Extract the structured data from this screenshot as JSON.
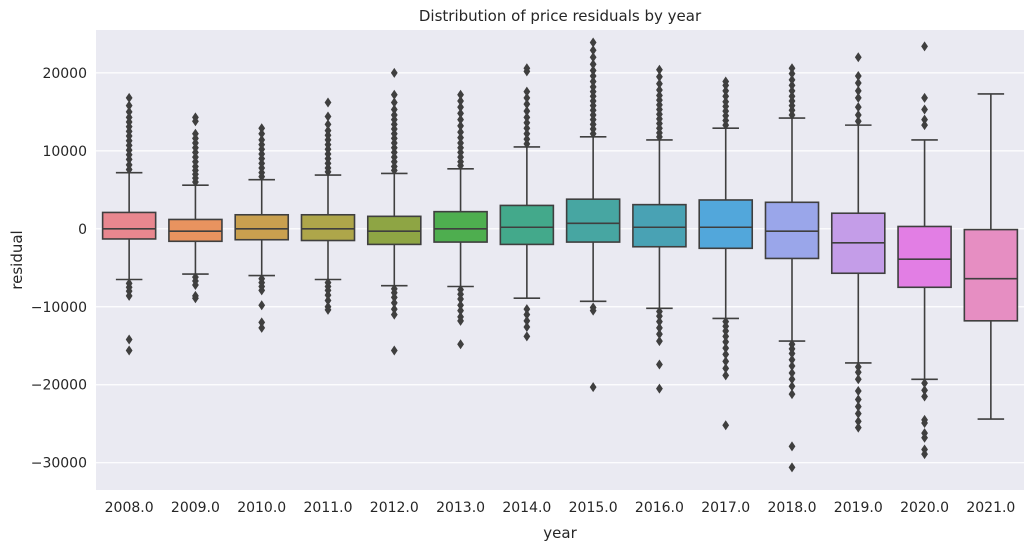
{
  "chart_data": {
    "type": "box",
    "title": "Distribution of price residuals by year",
    "xlabel": "year",
    "ylabel": "residual",
    "ylim": [
      -33500,
      25500
    ],
    "yticks": [
      -30000,
      -20000,
      -10000,
      0,
      10000,
      20000
    ],
    "ytick_labels": [
      "−30000",
      "−20000",
      "−10000",
      "0",
      "10000",
      "20000"
    ],
    "grid": true,
    "background_color": "#eaeaf2",
    "grid_color": "#ffffff",
    "line_color": "#3f3f3f",
    "categories": [
      "2008.0",
      "2009.0",
      "2010.0",
      "2011.0",
      "2012.0",
      "2013.0",
      "2014.0",
      "2015.0",
      "2016.0",
      "2017.0",
      "2018.0",
      "2019.0",
      "2020.0",
      "2021.0"
    ],
    "boxes": [
      {
        "year": "2008.0",
        "color": "#e8878f",
        "q1": -1300,
        "median": 0,
        "q3": 2100,
        "whisker_low": -6500,
        "whisker_high": 7200,
        "outliers_high": [
          7600,
          8200,
          8900,
          9500,
          10100,
          10700,
          11300,
          11900,
          12500,
          13100,
          13700,
          14300,
          15000,
          15800,
          16800
        ],
        "outliers_low": [
          -7000,
          -7500,
          -8000,
          -8600,
          -14200,
          -15600
        ]
      },
      {
        "year": "2009.0",
        "color": "#e8935f",
        "q1": -1600,
        "median": -300,
        "q3": 1200,
        "whisker_low": -5800,
        "whisker_high": 5600,
        "outliers_high": [
          6000,
          6500,
          7000,
          7500,
          8000,
          8600,
          9200,
          9800,
          10400,
          11000,
          11600,
          12200,
          13800,
          14300
        ],
        "outliers_low": [
          -6200,
          -6700,
          -7200,
          -8600,
          -8900
        ]
      },
      {
        "year": "2010.0",
        "color": "#c9a04f",
        "q1": -1400,
        "median": 0,
        "q3": 1800,
        "whisker_low": -6000,
        "whisker_high": 6300,
        "outliers_high": [
          6700,
          7200,
          7800,
          8400,
          9000,
          9600,
          10200,
          10800,
          11400,
          12200,
          12900
        ],
        "outliers_low": [
          -6400,
          -6900,
          -7400,
          -7900,
          -9800,
          -12000,
          -12700
        ]
      },
      {
        "year": "2011.0",
        "color": "#aea64a",
        "q1": -1500,
        "median": 0,
        "q3": 1800,
        "whisker_low": -6500,
        "whisker_high": 6900,
        "outliers_high": [
          7300,
          7800,
          8400,
          9000,
          9600,
          10200,
          10800,
          11400,
          12000,
          12600,
          13400,
          14400,
          16200
        ],
        "outliers_low": [
          -6900,
          -7400,
          -7900,
          -8500,
          -9200,
          -10000,
          -10400
        ]
      },
      {
        "year": "2012.0",
        "color": "#8ea544",
        "q1": -2000,
        "median": -300,
        "q3": 1600,
        "whisker_low": -7300,
        "whisker_high": 7100,
        "outliers_high": [
          7500,
          8000,
          8600,
          9200,
          9800,
          10400,
          11000,
          11600,
          12200,
          12800,
          13400,
          14000,
          14600,
          15300,
          16200,
          17200,
          20000
        ],
        "outliers_low": [
          -7700,
          -8200,
          -8800,
          -9500,
          -10300,
          -11000,
          -15600
        ]
      },
      {
        "year": "2013.0",
        "color": "#4eae4f",
        "q1": -1700,
        "median": 0,
        "q3": 2200,
        "whisker_low": -7400,
        "whisker_high": 7700,
        "outliers_high": [
          8100,
          8600,
          9200,
          9800,
          10400,
          11000,
          11700,
          12400,
          13200,
          14000,
          14800,
          15600,
          16400,
          17200
        ],
        "outliers_low": [
          -7800,
          -8400,
          -9000,
          -9800,
          -10500,
          -11300,
          -11800,
          -14800
        ]
      },
      {
        "year": "2014.0",
        "color": "#43a98b",
        "q1": -2000,
        "median": 200,
        "q3": 3000,
        "whisker_low": -8900,
        "whisker_high": 10500,
        "outliers_high": [
          10900,
          11500,
          12200,
          12900,
          13600,
          14300,
          15100,
          16000,
          16800,
          17600,
          20200,
          20600
        ],
        "outliers_low": [
          -10300,
          -11000,
          -11800,
          -12600,
          -13800
        ]
      },
      {
        "year": "2015.0",
        "color": "#47a6a2",
        "q1": -1700,
        "median": 700,
        "q3": 3800,
        "whisker_low": -9300,
        "whisker_high": 11800,
        "outliers_high": [
          12200,
          12800,
          13400,
          14000,
          14600,
          15200,
          15800,
          16400,
          17000,
          17600,
          18200,
          18900,
          19600,
          20300,
          21100,
          22000,
          22900,
          23900
        ],
        "outliers_low": [
          -10100,
          -10500,
          -20300
        ]
      },
      {
        "year": "2016.0",
        "color": "#49a2b4",
        "q1": -2300,
        "median": 200,
        "q3": 3100,
        "whisker_low": -10200,
        "whisker_high": 11400,
        "outliers_high": [
          11800,
          12300,
          12900,
          13500,
          14100,
          14700,
          15300,
          15900,
          16500,
          17100,
          17800,
          18600,
          19500,
          20400
        ],
        "outliers_low": [
          -10600,
          -11200,
          -11900,
          -12700,
          -13500,
          -14400,
          -17400,
          -20500
        ]
      },
      {
        "year": "2017.0",
        "color": "#52a7db",
        "q1": -2500,
        "median": 200,
        "q3": 3700,
        "whisker_low": -11500,
        "whisker_high": 12900,
        "outliers_high": [
          13300,
          13900,
          14500,
          15100,
          15700,
          16300,
          17000,
          17700,
          18400,
          18900
        ],
        "outliers_low": [
          -11900,
          -12500,
          -13100,
          -13800,
          -14500,
          -15300,
          -16100,
          -17000,
          -17900,
          -18800,
          -25200
        ]
      },
      {
        "year": "2018.0",
        "color": "#9aa6ea",
        "q1": -3800,
        "median": -300,
        "q3": 3400,
        "whisker_low": -14400,
        "whisker_high": 14200,
        "outliers_high": [
          14600,
          15200,
          15800,
          16400,
          17000,
          17700,
          18400,
          19100,
          19900,
          20600
        ],
        "outliers_low": [
          -14800,
          -15400,
          -16000,
          -16800,
          -17600,
          -18500,
          -19300,
          -20200,
          -21200,
          -27900,
          -30600
        ]
      },
      {
        "year": "2019.0",
        "color": "#c49de8",
        "q1": -5700,
        "median": -1800,
        "q3": 2000,
        "whisker_low": -17200,
        "whisker_high": 13300,
        "outliers_high": [
          13800,
          14600,
          15600,
          16800,
          17700,
          18700,
          19600,
          22000
        ],
        "outliers_low": [
          -17700,
          -18400,
          -19300,
          -20800,
          -21900,
          -22800,
          -23700,
          -24700,
          -25500
        ]
      },
      {
        "year": "2020.0",
        "color": "#e27ee4",
        "q1": -7500,
        "median": -3900,
        "q3": 300,
        "whisker_low": -19300,
        "whisker_high": 11400,
        "outliers_high": [
          13300,
          14000,
          15300,
          16800,
          23400
        ],
        "outliers_low": [
          -19800,
          -20700,
          -21500,
          -24500,
          -24900,
          -26200,
          -26800,
          -28300,
          -28900
        ]
      },
      {
        "year": "2021.0",
        "color": "#e68ec2",
        "q1": -11800,
        "median": -6400,
        "q3": -100,
        "whisker_low": -24400,
        "whisker_high": 17300,
        "outliers_high": [],
        "outliers_low": []
      }
    ]
  }
}
